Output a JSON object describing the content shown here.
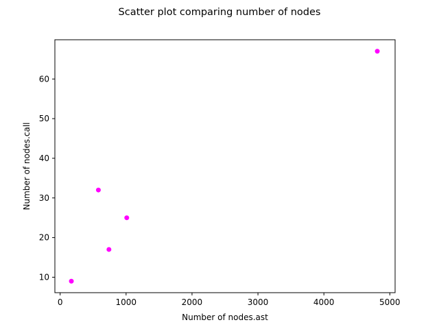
{
  "chart_data": {
    "type": "scatter",
    "title": "Scatter plot comparing number of nodes",
    "xlabel": "Number of nodes.ast",
    "ylabel": "Number of nodes.call",
    "xlim": [
      -80,
      5080
    ],
    "ylim": [
      6.1,
      69.9
    ],
    "xticks": [
      0,
      1000,
      2000,
      3000,
      4000,
      5000
    ],
    "yticks": [
      10,
      20,
      30,
      40,
      50,
      60
    ],
    "grid": false,
    "legend": "none",
    "marker_color": "#ff00ff",
    "points": [
      {
        "x": 170,
        "y": 9
      },
      {
        "x": 580,
        "y": 32
      },
      {
        "x": 740,
        "y": 17
      },
      {
        "x": 1010,
        "y": 25
      },
      {
        "x": 4810,
        "y": 67
      }
    ]
  }
}
